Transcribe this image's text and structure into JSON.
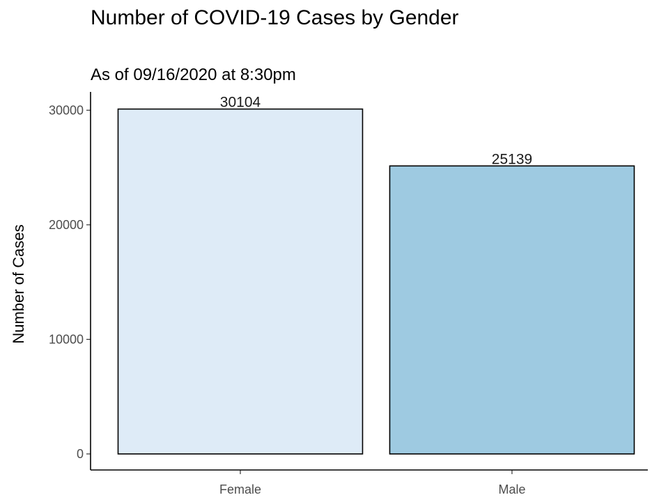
{
  "chart_data": {
    "type": "bar",
    "title": "Number of COVID-19 Cases by Gender",
    "subtitle": "As of 09/16/2020 at 8:30pm",
    "xlabel": "",
    "ylabel": "Number of Cases",
    "categories": [
      "Female",
      "Male"
    ],
    "values": [
      30104,
      25139
    ],
    "data_labels": [
      "30104",
      "25139"
    ],
    "yticks": [
      0,
      10000,
      20000,
      30000
    ],
    "ytick_labels": [
      "0",
      "10000",
      "20000",
      "30000"
    ],
    "ylim": [
      -1400,
      31600
    ],
    "colors": [
      "#deebf7",
      "#9ecae1"
    ],
    "bar_outline_color": "#000000",
    "grid": false,
    "legend": "none"
  }
}
